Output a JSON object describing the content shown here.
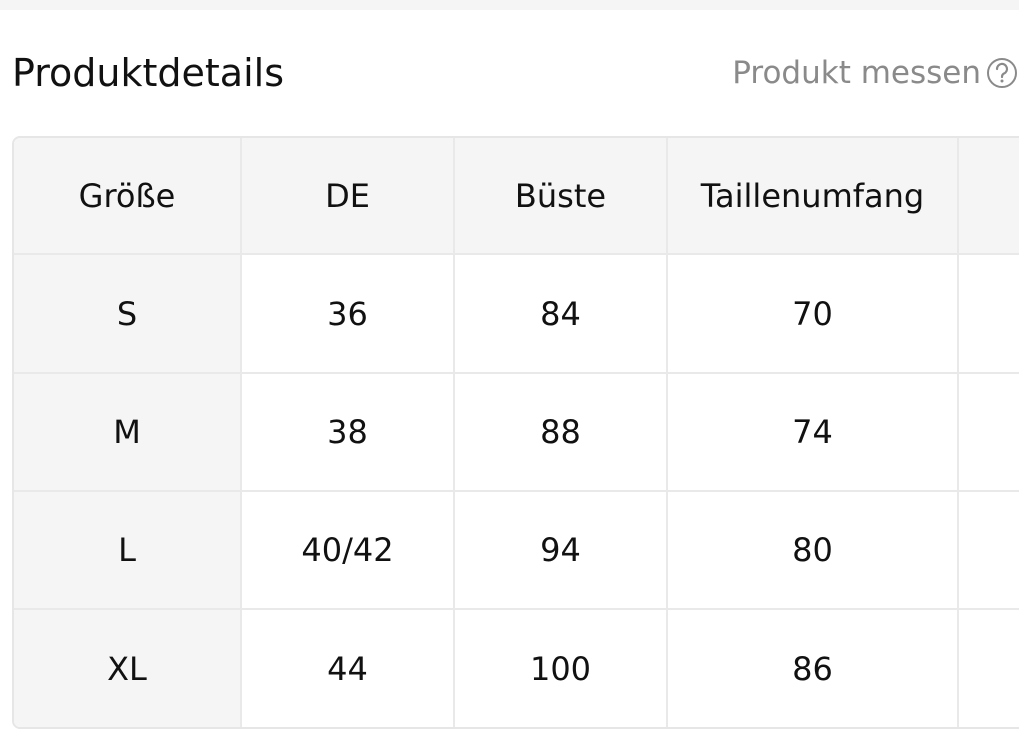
{
  "header": {
    "title": "Produktdetails",
    "link": "Produkt messen"
  },
  "table": {
    "columns": [
      "Größe",
      "DE",
      "Büste",
      "Taillenumfang"
    ],
    "rows": [
      [
        "S",
        "36",
        "84",
        "70"
      ],
      [
        "M",
        "38",
        "88",
        "74"
      ],
      [
        "L",
        "40/42",
        "94",
        "80"
      ],
      [
        "XL",
        "44",
        "100",
        "86"
      ]
    ]
  }
}
